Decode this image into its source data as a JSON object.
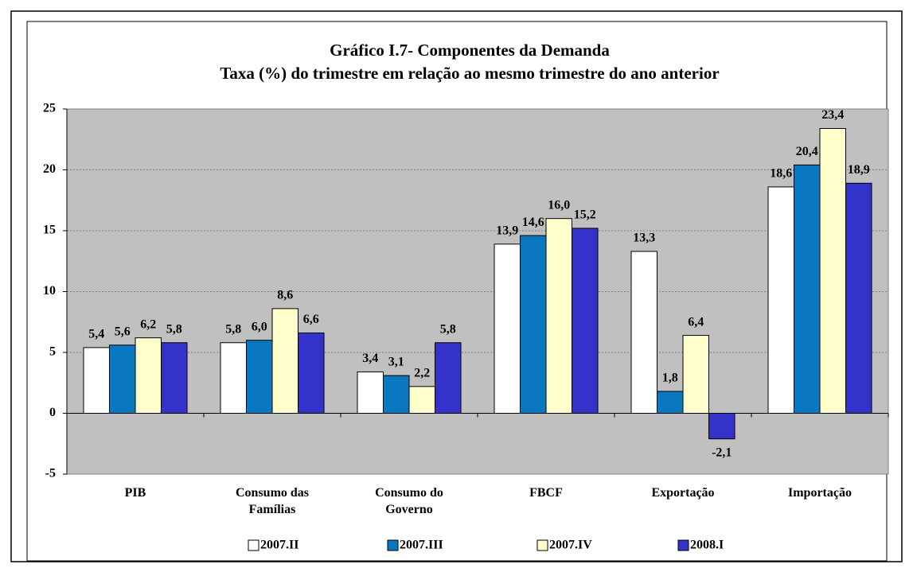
{
  "chart_data": {
    "type": "bar",
    "title": "Gráfico I.7- Componentes da Demanda",
    "subtitle": "Taxa (%) do trimestre em relação ao mesmo trimestre do ano anterior",
    "categories": [
      "PIB",
      "Consumo das Famílias",
      "Consumo do Governo",
      "FBCF",
      "Exportação",
      "Importação"
    ],
    "series": [
      {
        "name": "2007.II",
        "color": "#ffffff",
        "values": [
          5.4,
          5.8,
          3.4,
          13.9,
          13.3,
          18.6
        ],
        "value_labels": [
          "5,4",
          "5,8",
          "3,4",
          "13,9",
          "13,3",
          "18,6"
        ]
      },
      {
        "name": "2007.III",
        "color": "#0a78c0",
        "values": [
          5.6,
          6.0,
          3.1,
          14.6,
          1.8,
          20.4
        ],
        "value_labels": [
          "5,6",
          "6,0",
          "3,1",
          "14,6",
          "1,8",
          "20,4"
        ]
      },
      {
        "name": "2007.IV",
        "color": "#ffffcc",
        "values": [
          6.2,
          8.6,
          2.2,
          16.0,
          6.4,
          23.4
        ],
        "value_labels": [
          "6,2",
          "8,6",
          "2,2",
          "16,0",
          "6,4",
          "23,4"
        ]
      },
      {
        "name": "2008.I",
        "color": "#3333cc",
        "values": [
          5.8,
          6.6,
          5.8,
          15.2,
          -2.1,
          18.9
        ],
        "value_labels": [
          "5,8",
          "6,6",
          "5,8",
          "15,2",
          "-2,1",
          "18,9"
        ]
      }
    ],
    "ylim": [
      -5,
      25
    ],
    "yticks": [
      -5,
      0,
      5,
      10,
      15,
      20,
      25
    ],
    "grid": true,
    "legend": "bottom"
  }
}
